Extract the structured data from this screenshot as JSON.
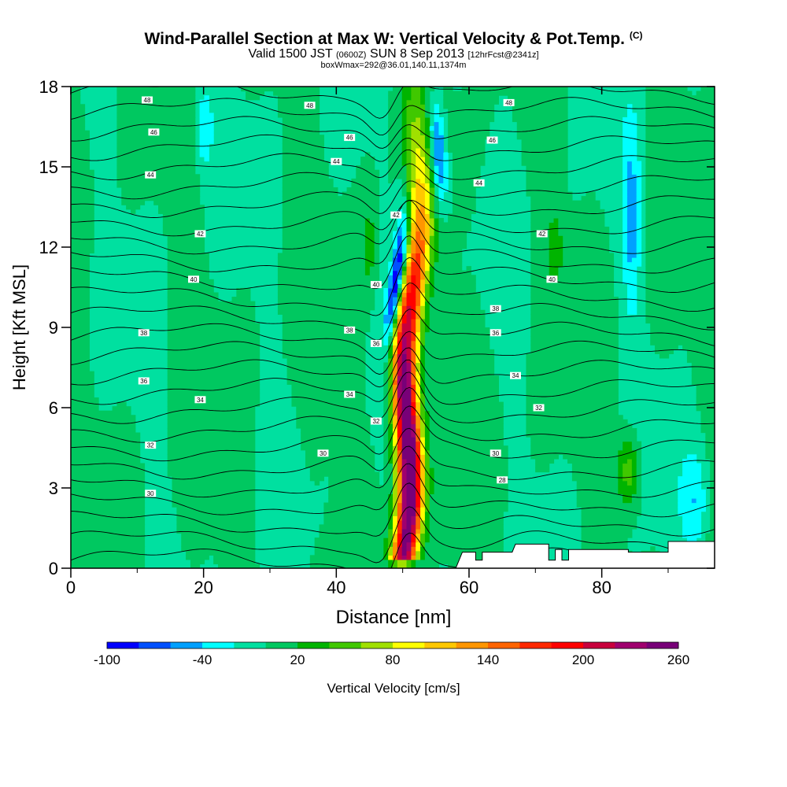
{
  "header": {
    "title": "Wind-Parallel Section at Max W: Vertical Velocity & Pot.Temp.",
    "copyright": "(C)",
    "valid_prefix": "Valid 1500 JST",
    "valid_utc": "(0600Z)",
    "valid_date": "SUN 8 Sep 2013",
    "forecast": "[12hrFcst@2341z]",
    "box_info": "boxWmax=292@36.01,140.11,1374m"
  },
  "chart_data": {
    "type": "heatmap",
    "xlabel": "Distance [nm]",
    "ylabel": "Height [Kft MSL]",
    "xlim": [
      0,
      97
    ],
    "ylim": [
      0,
      18
    ],
    "x_ticks": [
      "0",
      "20",
      "40",
      "60",
      "80"
    ],
    "y_ticks": [
      "0",
      "3",
      "6",
      "9",
      "12",
      "15",
      "18"
    ],
    "colorbar": {
      "label": "Vertical Velocity [cm/s]",
      "tick_labels": [
        "-100",
        "-40",
        "20",
        "80",
        "140",
        "200",
        "260"
      ],
      "levels": [
        -100,
        -80,
        -60,
        -40,
        -20,
        0,
        20,
        40,
        60,
        80,
        100,
        120,
        140,
        160,
        180,
        200,
        220,
        240,
        260
      ],
      "colors": [
        "#0000ff",
        "#0050ff",
        "#00a0ff",
        "#00ffff",
        "#00e0a0",
        "#00c860",
        "#00b400",
        "#40c800",
        "#a0e000",
        "#ffff00",
        "#ffc800",
        "#ff9600",
        "#ff6400",
        "#ff2800",
        "#ff0000",
        "#c8003c",
        "#a0006e",
        "#780078"
      ]
    },
    "updraft": {
      "x_center": 50.8,
      "peak_height": 4.5,
      "peak_value": 292
    },
    "theta_contour_labels": [
      {
        "x": 11.5,
        "y": 17.5,
        "text": "48"
      },
      {
        "x": 12.5,
        "y": 16.3,
        "text": "46"
      },
      {
        "x": 12,
        "y": 14.7,
        "text": "44"
      },
      {
        "x": 19.5,
        "y": 12.5,
        "text": "42"
      },
      {
        "x": 18.5,
        "y": 10.8,
        "text": "40"
      },
      {
        "x": 11,
        "y": 8.8,
        "text": "38"
      },
      {
        "x": 11,
        "y": 7.0,
        "text": "36"
      },
      {
        "x": 19.5,
        "y": 6.3,
        "text": "34"
      },
      {
        "x": 12,
        "y": 4.6,
        "text": "32"
      },
      {
        "x": 12,
        "y": 2.8,
        "text": "30"
      },
      {
        "x": 36,
        "y": 17.3,
        "text": "48"
      },
      {
        "x": 42,
        "y": 16.1,
        "text": "46"
      },
      {
        "x": 40,
        "y": 15.2,
        "text": "44"
      },
      {
        "x": 49,
        "y": 13.2,
        "text": "42"
      },
      {
        "x": 46,
        "y": 10.6,
        "text": "40"
      },
      {
        "x": 42,
        "y": 8.9,
        "text": "38"
      },
      {
        "x": 46,
        "y": 8.4,
        "text": "36"
      },
      {
        "x": 42,
        "y": 6.5,
        "text": "34"
      },
      {
        "x": 46,
        "y": 5.5,
        "text": "32"
      },
      {
        "x": 38,
        "y": 4.3,
        "text": "30"
      },
      {
        "x": 66,
        "y": 17.4,
        "text": "48"
      },
      {
        "x": 63.5,
        "y": 16.0,
        "text": "46"
      },
      {
        "x": 61.5,
        "y": 14.4,
        "text": "44"
      },
      {
        "x": 71,
        "y": 12.5,
        "text": "42"
      },
      {
        "x": 72.5,
        "y": 10.8,
        "text": "40"
      },
      {
        "x": 64,
        "y": 9.7,
        "text": "38"
      },
      {
        "x": 64,
        "y": 8.8,
        "text": "36"
      },
      {
        "x": 67,
        "y": 7.2,
        "text": "34"
      },
      {
        "x": 70.5,
        "y": 6.0,
        "text": "32"
      },
      {
        "x": 64,
        "y": 4.3,
        "text": "30"
      },
      {
        "x": 65,
        "y": 3.3,
        "text": "28"
      }
    ]
  }
}
